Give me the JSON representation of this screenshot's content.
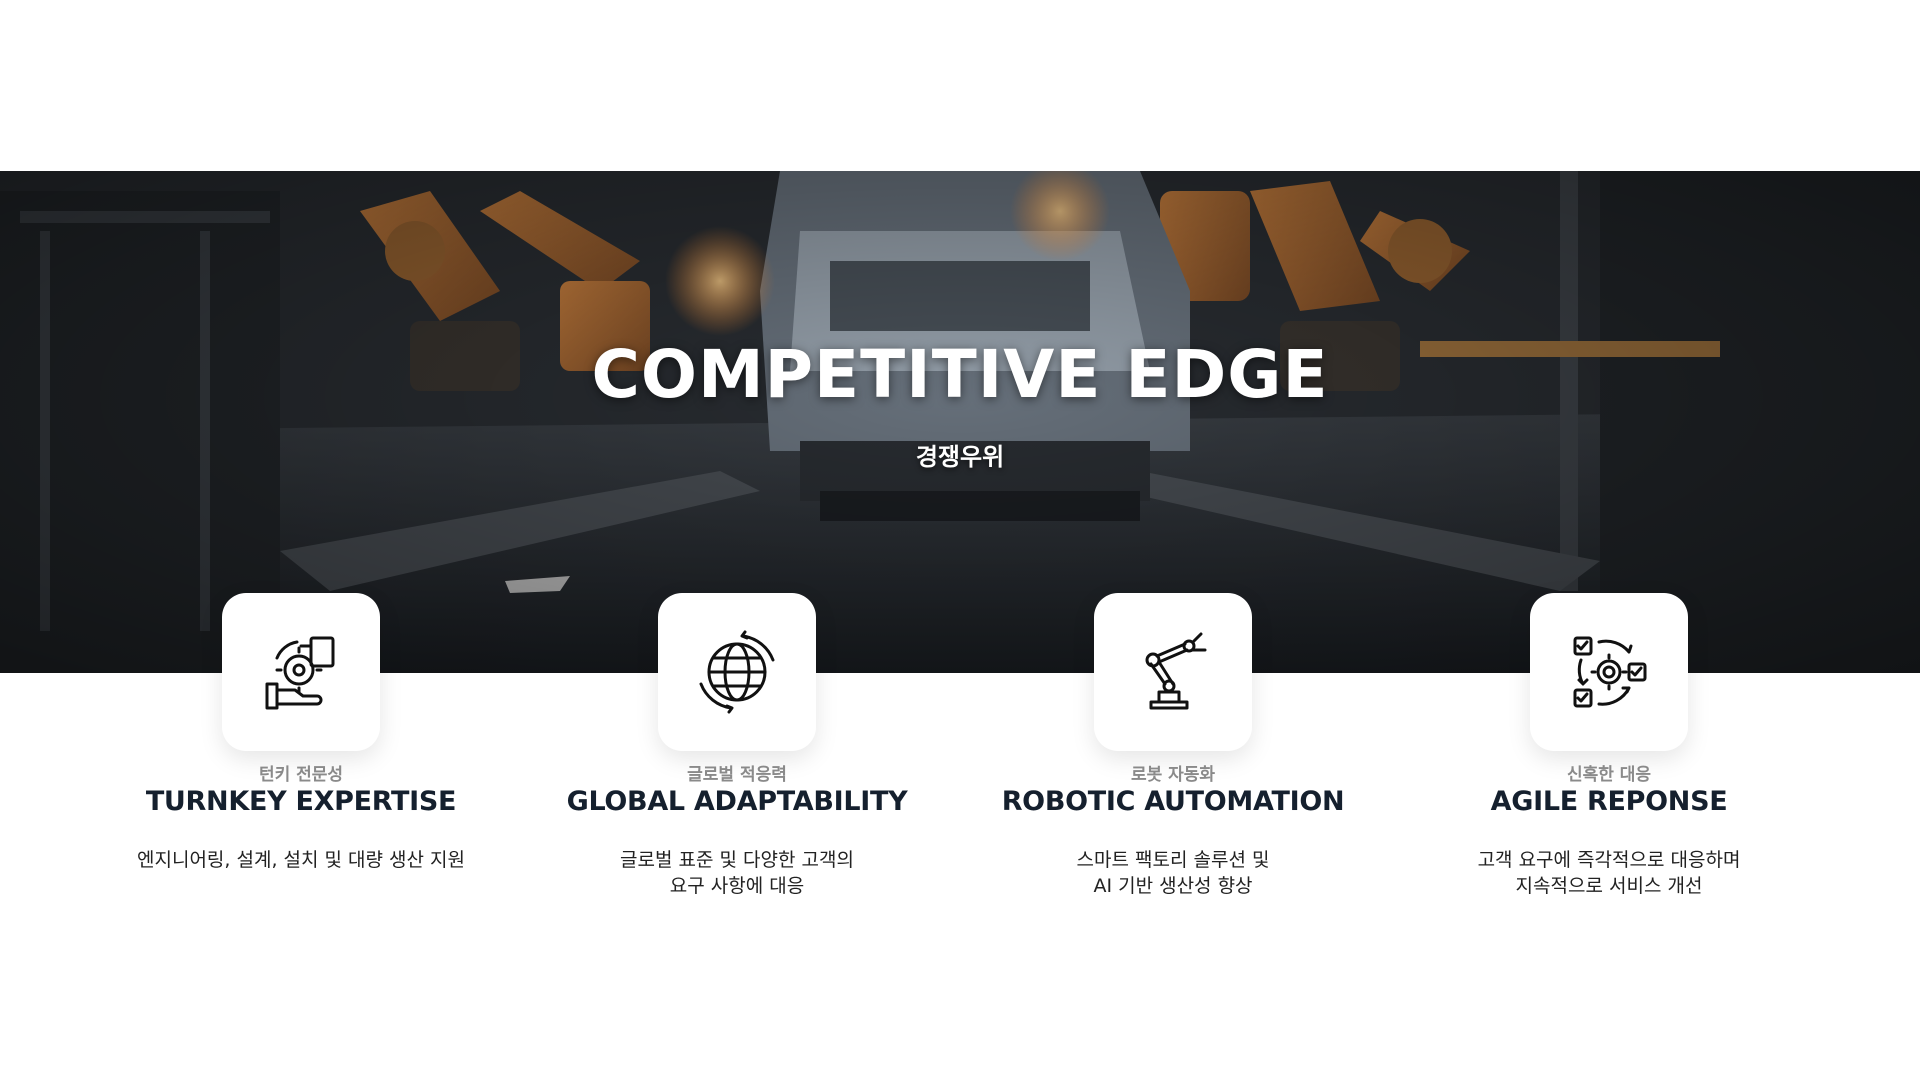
{
  "hero": {
    "title": "COMPETITIVE EDGE",
    "subtitle": "경쟁우위"
  },
  "features": [
    {
      "icon": "hand-gear-icon",
      "kr_label": "턴키 전문성",
      "title": "TURNKEY EXPERTISE",
      "desc_lines": [
        "엔지니어링, 설계, 설치 및 대량 생산 지원"
      ]
    },
    {
      "icon": "globe-icon",
      "kr_label": "글로벌 적응력",
      "title": "GLOBAL ADAPTABILITY",
      "desc_lines": [
        "글로벌 표준 및 다양한 고객의",
        "요구 사항에 대응"
      ]
    },
    {
      "icon": "robot-arm-icon",
      "kr_label": "로봇 자동화",
      "title": "ROBOTIC AUTOMATION",
      "desc_lines": [
        "스마트 팩토리 솔루션 및",
        "AI 기반 생산성 향상"
      ]
    },
    {
      "icon": "agile-cycle-icon",
      "kr_label": "신혹한 대응",
      "title": "AGILE REPONSE",
      "desc_lines": [
        "고객 요구에 즉각적으로 대응하며",
        "지속적으로 서비스 개선"
      ]
    }
  ],
  "colors": {
    "title_dark": "#15202e",
    "label_gray": "#8a8a8a",
    "hero_orange": "#b8743a"
  }
}
